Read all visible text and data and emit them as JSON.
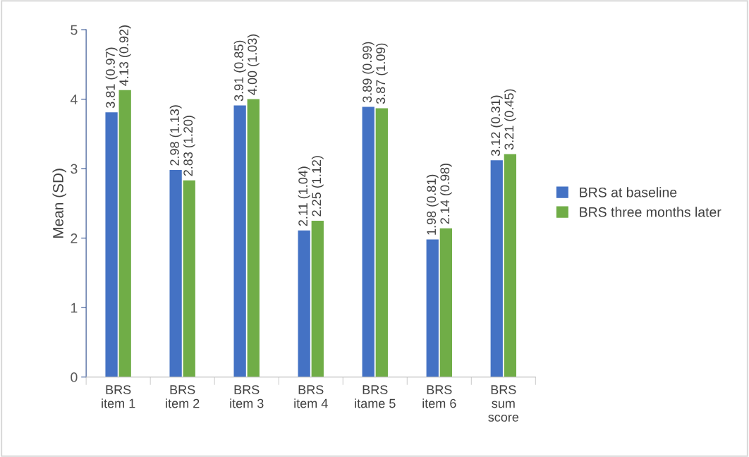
{
  "chart_data": {
    "type": "bar",
    "ylabel": "Mean (SD)",
    "categories": [
      "BRS\nitem 1",
      "BRS\nitem 2",
      "BRS\nitem 3",
      "BRS\nitem 4",
      "BRS\nitame 5",
      "BRS\nitem 6",
      "BRS\nsum\nscore"
    ],
    "series": [
      {
        "name": "BRS at baseline",
        "color": "#4472c4",
        "values": [
          3.81,
          2.98,
          3.91,
          2.11,
          3.89,
          1.98,
          3.12
        ],
        "value_labels": [
          "3.81 (0.97)",
          "2.98 (1.13)",
          "3.91 (0.85)",
          "2.11 (1.04)",
          "3.89 (0.99)",
          "1.98 (0.81)",
          "3.12 (0.31)"
        ]
      },
      {
        "name": "BRS three months later",
        "color": "#70ad47",
        "values": [
          4.13,
          2.83,
          4.0,
          2.25,
          3.87,
          2.14,
          3.21
        ],
        "value_labels": [
          "4.13 (0.92)",
          "2.83 (1.20)",
          "4.00 (1.03)",
          "2.25 (1.12)",
          "3.87 (1.09)",
          "2.14 (0.98)",
          "3.21 (0.45)"
        ]
      }
    ],
    "ylim": [
      0,
      5
    ],
    "yticks": [
      0,
      1,
      2,
      3,
      4,
      5
    ],
    "grid": false,
    "legend": "right"
  }
}
